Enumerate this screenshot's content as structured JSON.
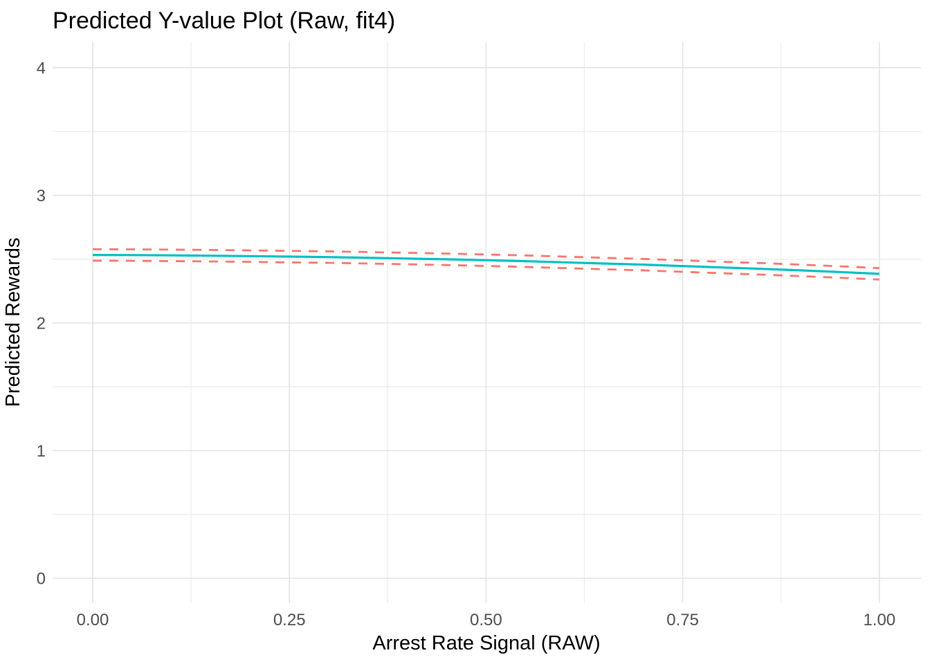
{
  "title": "Predicted Y-value Plot (Raw, fit4)",
  "colors": {
    "mean_line": "#00BFC4",
    "ci_line": "#F8766D",
    "grid_major": "#E3E3E3",
    "grid_minor": "#EDEDED",
    "tick_label": "#4D4D4D",
    "text": "#000000",
    "background": "#FFFFFF"
  },
  "chart_data": {
    "type": "line",
    "title": "Predicted Y-value Plot (Raw, fit4)",
    "xlabel": "Arrest Rate Signal (RAW)",
    "ylabel": "Predicted Rewards",
    "legend": "none",
    "grid": "major+minor",
    "xlim": [
      -0.051,
      1.053
    ],
    "ylim": [
      -0.195,
      4.2
    ],
    "x_ticks": [
      "0.00",
      "0.25",
      "0.50",
      "0.75",
      "1.00"
    ],
    "x_tick_values": [
      0,
      0.25,
      0.5,
      0.75,
      1.0
    ],
    "y_ticks": [
      "0",
      "1",
      "2",
      "3",
      "4"
    ],
    "y_tick_values": [
      0,
      1,
      2,
      3,
      4
    ],
    "x_minor_gridlines": [
      0.125,
      0.375,
      0.625,
      0.875
    ],
    "y_minor_gridlines": [
      0.5,
      1.5,
      2.5,
      3.5
    ],
    "x": [
      0,
      0.05,
      0.1,
      0.15,
      0.2,
      0.25,
      0.3,
      0.35,
      0.4,
      0.45,
      0.5,
      0.55,
      0.6,
      0.65,
      0.7,
      0.75,
      0.8,
      0.85,
      0.9,
      0.95,
      1.0
    ],
    "series": [
      {
        "name": "predicted_mean",
        "style": "solid",
        "color": "#00BFC4",
        "values": [
          2.533,
          2.532,
          2.53,
          2.527,
          2.524,
          2.52,
          2.516,
          2.511,
          2.505,
          2.499,
          2.492,
          2.484,
          2.475,
          2.466,
          2.457,
          2.446,
          2.435,
          2.424,
          2.412,
          2.399,
          2.385
        ]
      },
      {
        "name": "ci_upper",
        "style": "dashed",
        "color": "#F8766D",
        "values": [
          2.578,
          2.577,
          2.575,
          2.572,
          2.569,
          2.565,
          2.561,
          2.556,
          2.55,
          2.544,
          2.537,
          2.529,
          2.52,
          2.511,
          2.502,
          2.491,
          2.48,
          2.469,
          2.457,
          2.444,
          2.43
        ]
      },
      {
        "name": "ci_lower",
        "style": "dashed",
        "color": "#F8766D",
        "values": [
          2.488,
          2.487,
          2.485,
          2.482,
          2.479,
          2.475,
          2.471,
          2.466,
          2.46,
          2.454,
          2.447,
          2.439,
          2.43,
          2.421,
          2.412,
          2.401,
          2.39,
          2.379,
          2.367,
          2.354,
          2.34
        ]
      }
    ]
  }
}
